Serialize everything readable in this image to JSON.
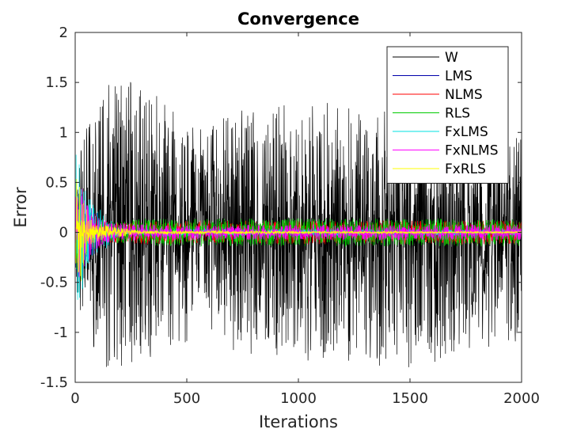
{
  "chart_data": {
    "type": "line",
    "title": "Convergence",
    "xlabel": "Iterations",
    "ylabel": "Error",
    "xlim": [
      0,
      2000
    ],
    "ylim": [
      -1.5,
      2
    ],
    "xticks": [
      0,
      500,
      1000,
      1500,
      2000
    ],
    "yticks": [
      -1.5,
      -1,
      -0.5,
      0,
      0.5,
      1,
      1.5,
      2
    ],
    "xtick_labels": [
      "0",
      "500",
      "1000",
      "1500",
      "2000"
    ],
    "ytick_labels": [
      "-1.5",
      "-1",
      "-0.5",
      "0",
      "0.5",
      "1",
      "1.5",
      "2"
    ],
    "legend_position": "top-right",
    "grid": false,
    "series": [
      {
        "name": "W",
        "color": "#000000",
        "envelope": {
          "x": [
            0,
            100,
            300,
            500,
            1000,
            1500,
            2000
          ],
          "upper": [
            0.6,
            1.5,
            1.53,
            1.1,
            1.35,
            1.2,
            0.95
          ],
          "lower": [
            -0.6,
            -1.4,
            -1.28,
            -1.1,
            -1.3,
            -1.35,
            -1.1
          ]
        }
      },
      {
        "name": "LMS",
        "color": "#0000aa",
        "envelope": {
          "x": [
            0,
            50,
            150,
            300,
            2000
          ],
          "upper": [
            0.5,
            0.3,
            0.08,
            0.04,
            0.03
          ],
          "lower": [
            -0.5,
            -0.3,
            -0.08,
            -0.04,
            -0.03
          ]
        }
      },
      {
        "name": "NLMS",
        "color": "#ff0000",
        "envelope": {
          "x": [
            0,
            50,
            150,
            300,
            2000
          ],
          "upper": [
            0.5,
            0.25,
            0.1,
            0.12,
            0.12
          ],
          "lower": [
            -0.5,
            -0.25,
            -0.1,
            -0.12,
            -0.12
          ]
        }
      },
      {
        "name": "RLS",
        "color": "#00cc00",
        "envelope": {
          "x": [
            0,
            50,
            150,
            300,
            2000
          ],
          "upper": [
            0.4,
            0.2,
            0.1,
            0.14,
            0.14
          ],
          "lower": [
            -0.4,
            -0.2,
            -0.1,
            -0.14,
            -0.14
          ]
        }
      },
      {
        "name": "FxLMS",
        "color": "#00e0e0",
        "envelope": {
          "x": [
            0,
            20,
            60,
            130,
            200,
            2000
          ],
          "upper": [
            0.8,
            0.8,
            0.35,
            0.2,
            0.04,
            0.03
          ],
          "lower": [
            -0.7,
            -0.7,
            -0.3,
            -0.2,
            -0.04,
            -0.03
          ]
        }
      },
      {
        "name": "FxNLMS",
        "color": "#ff00ff",
        "envelope": {
          "x": [
            0,
            30,
            80,
            150,
            300,
            2000
          ],
          "upper": [
            0.45,
            0.45,
            0.2,
            0.1,
            0.08,
            0.08
          ],
          "lower": [
            -0.45,
            -0.45,
            -0.2,
            -0.1,
            -0.08,
            -0.08
          ]
        }
      },
      {
        "name": "FxRLS",
        "color": "#ffff00",
        "envelope": {
          "x": [
            0,
            20,
            60,
            150,
            300,
            2000
          ],
          "upper": [
            0.55,
            0.55,
            0.15,
            0.06,
            0.02,
            0.01
          ],
          "lower": [
            -0.6,
            -0.6,
            -0.15,
            -0.06,
            -0.02,
            -0.01
          ]
        }
      }
    ]
  }
}
